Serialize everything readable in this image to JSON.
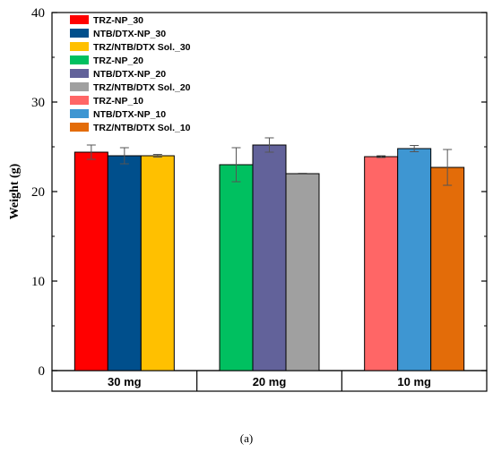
{
  "caption": "(a)",
  "chart_data": {
    "type": "bar",
    "title": "",
    "xlabel": "",
    "ylabel": "Weight (g)",
    "ylim": [
      0,
      40
    ],
    "yticks": [
      0,
      10,
      20,
      30,
      40
    ],
    "grid": false,
    "legend_position": "top-left",
    "categories": [
      "30 mg",
      "20 mg",
      "10 mg"
    ],
    "groups": [
      {
        "category": "30 mg",
        "bars": [
          {
            "name": "TRZ-NP_30",
            "value": 24.4,
            "error": 0.8,
            "color": "#ff0000"
          },
          {
            "name": "NTB/DTX-NP_30",
            "value": 24.0,
            "error": 0.9,
            "color": "#004f8c"
          },
          {
            "name": "TRZ/NTB/DTX Sol._30",
            "value": 24.0,
            "error": 0.15,
            "color": "#ffc000"
          }
        ]
      },
      {
        "category": "20 mg",
        "bars": [
          {
            "name": "TRZ-NP_20",
            "value": 23.0,
            "error": 1.9,
            "color": "#00c060"
          },
          {
            "name": "NTB/DTX-NP_20",
            "value": 25.2,
            "error": 0.8,
            "color": "#62629a"
          },
          {
            "name": "TRZ/NTB/DTX Sol._20",
            "value": 22.0,
            "error": 0.05,
            "color": "#a0a0a0"
          }
        ]
      },
      {
        "category": "10 mg",
        "bars": [
          {
            "name": "TRZ-NP_10",
            "value": 23.9,
            "error": 0.1,
            "color": "#ff6666"
          },
          {
            "name": "NTB/DTX-NP_10",
            "value": 24.8,
            "error": 0.35,
            "color": "#3e96d2"
          },
          {
            "name": "TRZ/NTB/DTX Sol._10",
            "value": 22.7,
            "error": 2.0,
            "color": "#e36c09"
          }
        ]
      }
    ],
    "legend": [
      {
        "name": "TRZ-NP_30",
        "color": "#ff0000"
      },
      {
        "name": "NTB/DTX-NP_30",
        "color": "#004f8c"
      },
      {
        "name": "TRZ/NTB/DTX Sol._30",
        "color": "#ffc000"
      },
      {
        "name": "TRZ-NP_20",
        "color": "#00c060"
      },
      {
        "name": "NTB/DTX-NP_20",
        "color": "#62629a"
      },
      {
        "name": "TRZ/NTB/DTX Sol._20",
        "color": "#a0a0a0"
      },
      {
        "name": "TRZ-NP_10",
        "color": "#ff6666"
      },
      {
        "name": "NTB/DTX-NP_10",
        "color": "#3e96d2"
      },
      {
        "name": "TRZ/NTB/DTX Sol._10",
        "color": "#e36c09"
      }
    ]
  }
}
